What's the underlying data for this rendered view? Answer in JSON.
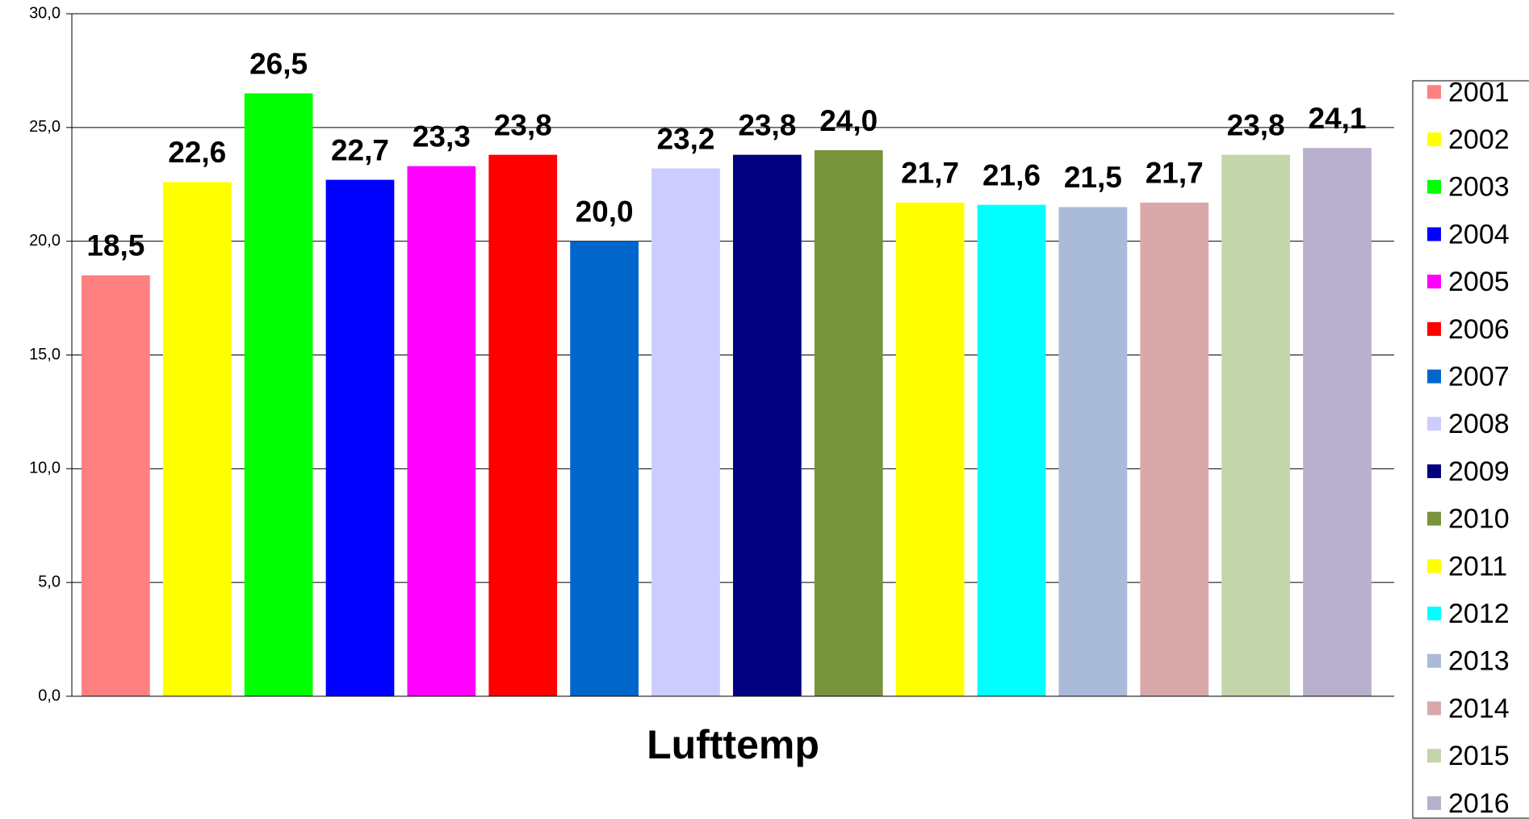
{
  "chart_data": {
    "type": "bar",
    "categories": [
      "Lufttemp"
    ],
    "series": [
      {
        "name": "2001",
        "color": "#ff8080",
        "values": [
          18.5
        ],
        "value_labels": [
          "18,5"
        ]
      },
      {
        "name": "2002",
        "color": "#ffff00",
        "values": [
          22.6
        ],
        "value_labels": [
          "22,6"
        ]
      },
      {
        "name": "2003",
        "color": "#00ff00",
        "values": [
          26.5
        ],
        "value_labels": [
          "26,5"
        ]
      },
      {
        "name": "2004",
        "color": "#0000ff",
        "values": [
          22.7
        ],
        "value_labels": [
          "22,7"
        ]
      },
      {
        "name": "2005",
        "color": "#ff00ff",
        "values": [
          23.3
        ],
        "value_labels": [
          "23,3"
        ]
      },
      {
        "name": "2006",
        "color": "#ff0000",
        "values": [
          23.8
        ],
        "value_labels": [
          "23,8"
        ]
      },
      {
        "name": "2007",
        "color": "#0066cc",
        "values": [
          20.0
        ],
        "value_labels": [
          "20,0"
        ]
      },
      {
        "name": "2008",
        "color": "#ccccff",
        "values": [
          23.2
        ],
        "value_labels": [
          "23,2"
        ]
      },
      {
        "name": "2009",
        "color": "#000080",
        "values": [
          23.8
        ],
        "value_labels": [
          "23,8"
        ]
      },
      {
        "name": "2010",
        "color": "#77933c",
        "values": [
          24.0
        ],
        "value_labels": [
          "24,0"
        ]
      },
      {
        "name": "2011",
        "color": "#ffff00",
        "values": [
          21.7
        ],
        "value_labels": [
          "21,7"
        ]
      },
      {
        "name": "2012",
        "color": "#00ffff",
        "values": [
          21.6
        ],
        "value_labels": [
          "21,6"
        ]
      },
      {
        "name": "2013",
        "color": "#a9bbd9",
        "values": [
          21.5
        ],
        "value_labels": [
          "21,5"
        ]
      },
      {
        "name": "2014",
        "color": "#d9a9a9",
        "values": [
          21.7
        ],
        "value_labels": [
          "21,7"
        ]
      },
      {
        "name": "2015",
        "color": "#c4d5ab",
        "values": [
          23.8
        ],
        "value_labels": [
          "23,8"
        ]
      },
      {
        "name": "2016",
        "color": "#b8b0cc",
        "values": [
          24.1
        ],
        "value_labels": [
          "24,1"
        ]
      }
    ],
    "ylim": [
      0,
      30
    ],
    "yticks": [
      {
        "value": 0,
        "label": "0,0"
      },
      {
        "value": 5,
        "label": "5,0"
      },
      {
        "value": 10,
        "label": "10,0"
      },
      {
        "value": 15,
        "label": "15,0"
      },
      {
        "value": 20,
        "label": "20,0"
      },
      {
        "value": 25,
        "label": "25,0"
      },
      {
        "value": 30,
        "label": "30,0"
      }
    ],
    "grid": true,
    "legend": "right"
  }
}
